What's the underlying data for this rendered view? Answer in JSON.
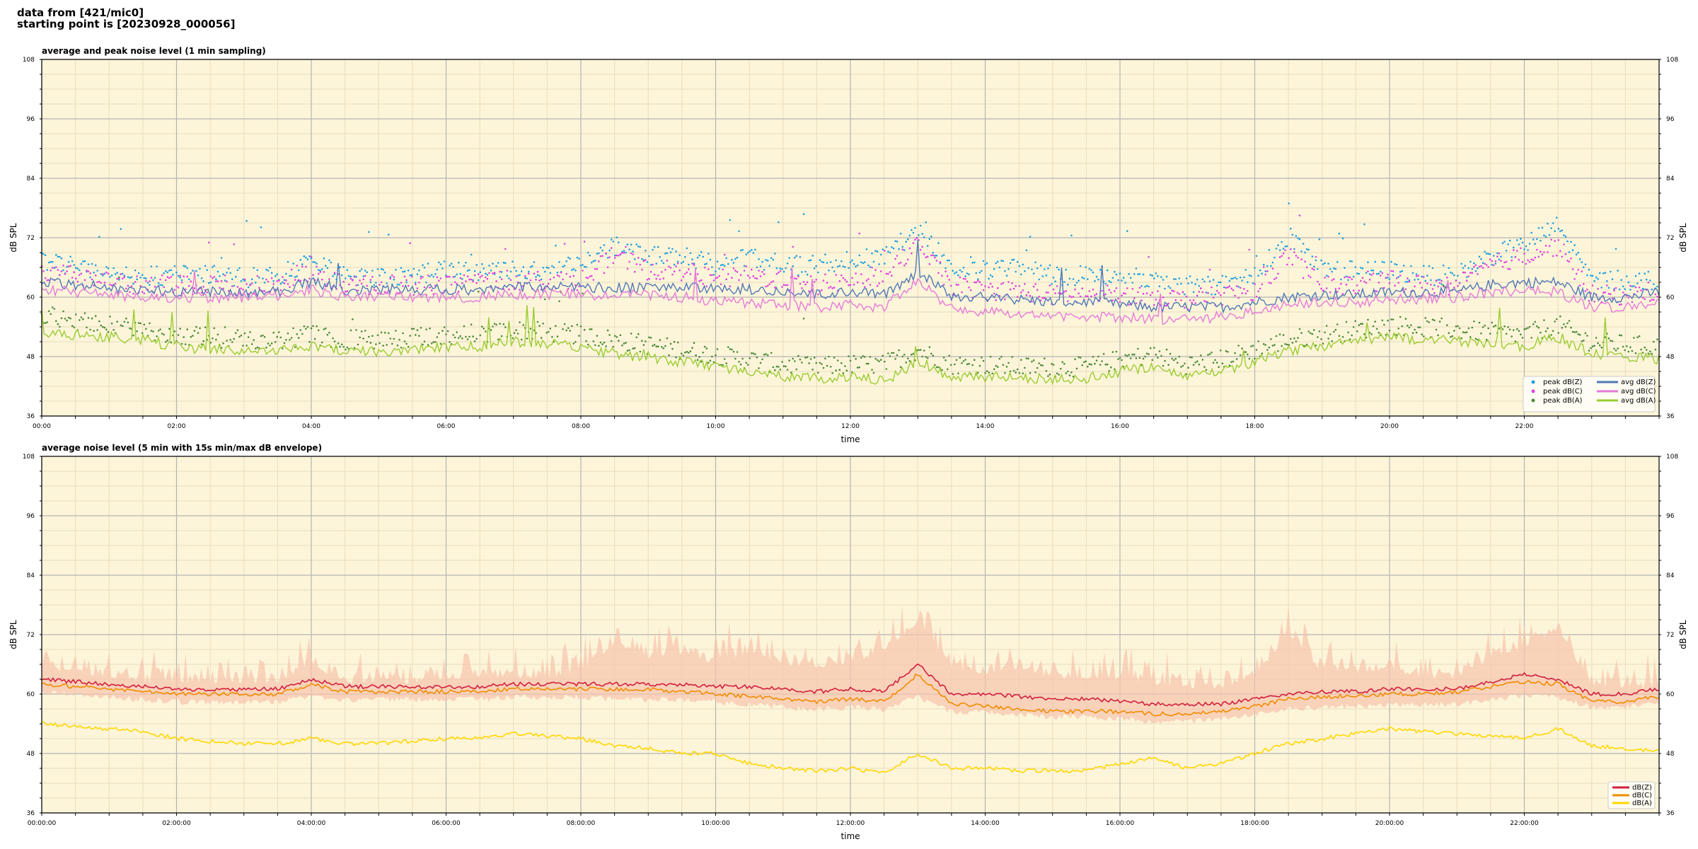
{
  "header": {
    "line1": "data from [421/mic0]",
    "line2": "starting point is [20230928_000056]"
  },
  "colors": {
    "plot_bg": "#fdf5d9",
    "grid_major": "#b4b4b4",
    "grid_minor": "#e8dcc0",
    "peak_z": "#1f9fe0",
    "peak_c": "#e040e0",
    "peak_a": "#4a8a3a",
    "avg_z": "#4f78b8",
    "avg_c": "#e67ad9",
    "avg_a": "#9acd32",
    "db_z": "#d21f3c",
    "db_c": "#f08c00",
    "db_a": "#ffd700",
    "envelope": "#f6c3ad"
  },
  "chart_data": [
    {
      "type": "line",
      "title": "average and peak noise level (1 min sampling)",
      "xlabel": "time",
      "ylabel": "dB SPL",
      "ylabel_right": "dB SPL",
      "ylim": [
        36,
        108
      ],
      "yticks": [
        "36",
        "48",
        "60",
        "72",
        "84",
        "96",
        "108"
      ],
      "xlim": [
        "00:00",
        "24:00"
      ],
      "xticks": [
        "00:00",
        "02:00",
        "04:00",
        "06:00",
        "08:00",
        "10:00",
        "12:00",
        "14:00",
        "16:00",
        "18:00",
        "20:00",
        "22:00"
      ],
      "grid": true,
      "legend_position": "bottom-right",
      "legend": [
        {
          "label": "peak dB(Z)",
          "style": "dot",
          "color_key": "peak_z"
        },
        {
          "label": "avg dB(Z)",
          "style": "line",
          "color_key": "avg_z"
        },
        {
          "label": "peak dB(C)",
          "style": "dot",
          "color_key": "peak_c"
        },
        {
          "label": "avg dB(C)",
          "style": "line",
          "color_key": "avg_c"
        },
        {
          "label": "peak dB(A)",
          "style": "dot",
          "color_key": "peak_a"
        },
        {
          "label": "avg dB(A)",
          "style": "line",
          "color_key": "avg_a"
        }
      ],
      "x_hours": [
        0,
        0.5,
        1,
        1.5,
        2,
        2.5,
        3,
        3.5,
        4,
        4.5,
        5,
        5.5,
        6,
        6.5,
        7,
        7.5,
        8,
        8.5,
        9,
        9.5,
        10,
        10.5,
        11,
        11.5,
        12,
        12.5,
        13,
        13.5,
        14,
        14.5,
        15,
        15.5,
        16,
        16.5,
        17,
        17.5,
        18,
        18.5,
        19,
        19.5,
        20,
        20.5,
        21,
        21.5,
        22,
        22.5,
        23,
        23.5,
        24
      ],
      "series": [
        {
          "name": "avg dB(Z)",
          "kind": "line",
          "color_key": "avg_z",
          "values": [
            63,
            62.5,
            62,
            61.5,
            61,
            61,
            61,
            61,
            63,
            61.5,
            61.5,
            61.5,
            61.5,
            61.5,
            62,
            62,
            62,
            62,
            62,
            62,
            61.5,
            61.5,
            61,
            60.5,
            61,
            60.5,
            65,
            60,
            60,
            59.5,
            59,
            59,
            58.5,
            58,
            58,
            58,
            59,
            60,
            60.5,
            60.5,
            61,
            61,
            61,
            62.5,
            63,
            63,
            60,
            60,
            61
          ]
        },
        {
          "name": "avg dB(C)",
          "kind": "line",
          "color_key": "avg_c",
          "values": [
            61.5,
            61,
            60.5,
            60,
            60,
            60,
            60,
            60,
            61.5,
            60,
            60,
            60,
            60,
            60,
            60.5,
            60.5,
            60.5,
            60.5,
            60.5,
            60,
            59,
            59,
            58.5,
            58,
            58.5,
            58,
            63.5,
            57.5,
            57,
            56.5,
            56,
            56,
            56,
            55.5,
            55.5,
            56,
            57,
            58.5,
            59,
            59,
            59.5,
            59.5,
            60,
            61,
            61.5,
            61,
            58,
            58,
            59
          ]
        },
        {
          "name": "avg dB(A)",
          "kind": "line",
          "color_key": "avg_a",
          "values": [
            53,
            52.5,
            52,
            51.5,
            50,
            49.5,
            49,
            49,
            50,
            49,
            49,
            49.5,
            50,
            50,
            51,
            50.5,
            50,
            48.5,
            48,
            47,
            46,
            45,
            44,
            43.5,
            44,
            43,
            47,
            44,
            44,
            43.5,
            43.5,
            43.5,
            45,
            46,
            44,
            45,
            47,
            49,
            50,
            51,
            52,
            51.5,
            51,
            50.5,
            50,
            52,
            48.5,
            48,
            47.5
          ]
        },
        {
          "name": "peak dB(Z)",
          "kind": "points",
          "color_key": "peak_z",
          "values": [
            67,
            66,
            65,
            64,
            64,
            64,
            63.5,
            64,
            67,
            64,
            64,
            64,
            65,
            65,
            65,
            65,
            66,
            70,
            68,
            68,
            66,
            68,
            66,
            66,
            67,
            68,
            73,
            66,
            65,
            66,
            64,
            64,
            64,
            63,
            62,
            62,
            64,
            72,
            65,
            65,
            65,
            64,
            64,
            68,
            70,
            74,
            63,
            63,
            63
          ]
        },
        {
          "name": "peak dB(C)",
          "kind": "points",
          "color_key": "peak_c",
          "values": [
            65,
            64,
            63,
            62,
            62,
            62,
            62,
            62,
            65,
            62,
            62,
            62,
            62,
            63,
            63,
            63,
            63,
            68,
            65,
            65,
            63,
            64,
            63,
            62,
            63,
            64,
            70,
            62,
            61,
            61,
            60,
            60,
            60,
            60,
            59,
            60,
            61,
            68,
            62,
            62,
            63,
            62,
            62,
            66,
            68,
            70,
            60,
            60,
            61
          ]
        },
        {
          "name": "peak dB(A)",
          "kind": "points",
          "color_key": "peak_a",
          "values": [
            56,
            55,
            54,
            53,
            52,
            51.5,
            51,
            51,
            52,
            51,
            51,
            51.5,
            52,
            52,
            53,
            52.5,
            52,
            51,
            50,
            49,
            48,
            47,
            46,
            45.5,
            46,
            46,
            49,
            46,
            46,
            45.5,
            45.5,
            45.5,
            47,
            48,
            46,
            47,
            49,
            51,
            52,
            53,
            54,
            53.5,
            53,
            52.5,
            52,
            54,
            50.5,
            50,
            49.5
          ]
        }
      ]
    },
    {
      "type": "line",
      "title": "average noise level (5 min with 15s min/max dB envelope)",
      "xlabel": "time",
      "ylabel": "dB SPL",
      "ylabel_right": "dB SPL",
      "ylim": [
        36,
        108
      ],
      "yticks": [
        "36",
        "48",
        "60",
        "72",
        "84",
        "96",
        "108"
      ],
      "xlim": [
        "00:00:00",
        "24:00:00"
      ],
      "xticks": [
        "00:00:00",
        "02:00:00",
        "04:00:00",
        "06:00:00",
        "08:00:00",
        "10:00:00",
        "12:00:00",
        "14:00:00",
        "16:00:00",
        "18:00:00",
        "20:00:00",
        "22:00:00"
      ],
      "grid": true,
      "legend_position": "bottom-right",
      "legend": [
        {
          "label": "dB(Z)",
          "style": "line",
          "color_key": "db_z"
        },
        {
          "label": "dB(C)",
          "style": "line",
          "color_key": "db_c"
        },
        {
          "label": "dB(A)",
          "style": "line",
          "color_key": "db_a"
        }
      ],
      "x_hours": [
        0,
        0.5,
        1,
        1.5,
        2,
        2.5,
        3,
        3.5,
        4,
        4.5,
        5,
        5.5,
        6,
        6.5,
        7,
        7.5,
        8,
        8.5,
        9,
        9.5,
        10,
        10.5,
        11,
        11.5,
        12,
        12.5,
        13,
        13.5,
        14,
        14.5,
        15,
        15.5,
        16,
        16.5,
        17,
        17.5,
        18,
        18.5,
        19,
        19.5,
        20,
        20.5,
        21,
        21.5,
        22,
        22.5,
        23,
        23.5,
        24
      ],
      "series": [
        {
          "name": "dB(Z)",
          "kind": "line",
          "color_key": "db_z",
          "values": [
            63,
            62.5,
            62,
            61.5,
            61,
            61,
            61,
            61,
            63,
            61.5,
            61.5,
            61.5,
            61.5,
            61.5,
            62,
            62,
            62,
            62,
            62,
            62,
            61.5,
            61.5,
            61,
            60.5,
            61,
            60.5,
            66,
            60,
            60,
            59.5,
            59,
            59,
            58.5,
            58,
            58,
            58,
            59,
            60,
            60.5,
            60.5,
            61,
            61,
            61,
            62.5,
            64,
            63,
            60,
            60,
            61
          ]
        },
        {
          "name": "dB(C)",
          "kind": "line",
          "color_key": "db_c",
          "values": [
            62,
            61.5,
            61,
            60.5,
            60,
            60,
            60,
            60,
            62,
            60.5,
            60.5,
            60.5,
            60.5,
            60.5,
            61,
            61,
            61,
            61,
            61,
            60.5,
            60,
            59.5,
            59,
            58.5,
            59,
            58.5,
            64,
            58,
            57.5,
            57,
            56.5,
            56.5,
            56.5,
            56,
            56,
            56.5,
            57.5,
            59,
            59.5,
            59.5,
            60,
            60,
            60.5,
            61.5,
            62.5,
            62,
            58.5,
            58.5,
            59.5
          ]
        },
        {
          "name": "dB(A)",
          "kind": "line",
          "color_key": "db_a",
          "values": [
            54,
            53.5,
            53,
            52.5,
            51,
            50.5,
            50,
            50,
            51,
            50,
            50,
            50.5,
            51,
            51,
            52,
            51.5,
            51,
            49.5,
            49,
            48,
            48,
            46,
            45,
            44.5,
            45,
            44,
            48,
            45,
            45,
            44.5,
            44.5,
            44.5,
            46,
            47,
            45,
            46,
            48,
            50,
            51,
            52,
            53,
            52.5,
            52,
            51.5,
            51,
            53,
            49.5,
            49,
            48.5
          ]
        },
        {
          "name": "envelope max",
          "kind": "band_upper",
          "color_key": "envelope",
          "values": [
            66,
            65,
            64,
            63,
            63,
            63,
            63,
            63,
            67,
            63,
            63,
            63,
            64,
            64,
            64,
            64,
            65,
            71,
            68,
            69,
            67,
            69,
            67,
            66,
            67,
            69,
            75,
            66,
            65,
            66,
            64,
            64,
            64,
            63,
            62,
            62,
            64,
            73,
            65,
            65,
            66,
            64,
            64,
            68,
            70,
            74,
            62,
            62,
            62
          ]
        },
        {
          "name": "envelope min",
          "kind": "band_lower",
          "color_key": "envelope",
          "values": [
            61,
            60.5,
            60,
            59.5,
            59,
            59,
            59,
            59,
            60,
            59.5,
            59.5,
            59.5,
            59.5,
            59.5,
            60,
            60,
            60,
            59.5,
            59.5,
            59.5,
            59,
            58.5,
            58,
            57.5,
            58,
            57.5,
            60,
            57,
            57,
            56.5,
            56,
            56,
            55.5,
            55,
            55,
            55.5,
            56.5,
            57.5,
            58,
            58,
            58.5,
            58.5,
            58.5,
            59.5,
            60.5,
            60,
            58,
            58,
            59
          ]
        }
      ]
    }
  ]
}
